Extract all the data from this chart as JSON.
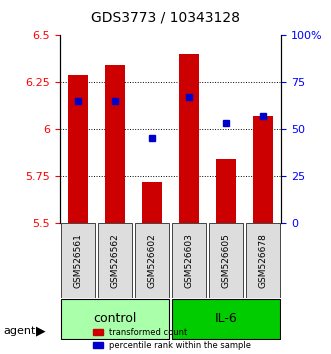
{
  "title": "GDS3773 / 10343128",
  "samples": [
    "GSM526561",
    "GSM526562",
    "GSM526602",
    "GSM526603",
    "GSM526605",
    "GSM526678"
  ],
  "groups": [
    "control",
    "control",
    "control",
    "IL-6",
    "IL-6",
    "IL-6"
  ],
  "bar_values": [
    6.29,
    6.34,
    5.72,
    6.4,
    5.84,
    6.07
  ],
  "percentile_values": [
    65,
    65,
    45,
    67,
    53,
    57
  ],
  "ylim_left": [
    5.5,
    6.5
  ],
  "ylim_right": [
    0,
    100
  ],
  "yticks_left": [
    5.5,
    5.75,
    6.0,
    6.25,
    6.5
  ],
  "ytick_labels_left": [
    "5.5",
    "5.75",
    "6",
    "6.25",
    "6.5"
  ],
  "yticks_right": [
    0,
    25,
    50,
    75,
    100
  ],
  "ytick_labels_right": [
    "0",
    "25",
    "50",
    "75",
    "100%"
  ],
  "bar_color": "#cc0000",
  "dot_color": "#0000cc",
  "group_colors": {
    "control": "#aaffaa",
    "IL-6": "#00cc00"
  },
  "bar_bottom": 5.5,
  "group_label_fontsize": 9,
  "sample_fontsize": 7,
  "legend_fontsize": 7,
  "title_fontsize": 10
}
